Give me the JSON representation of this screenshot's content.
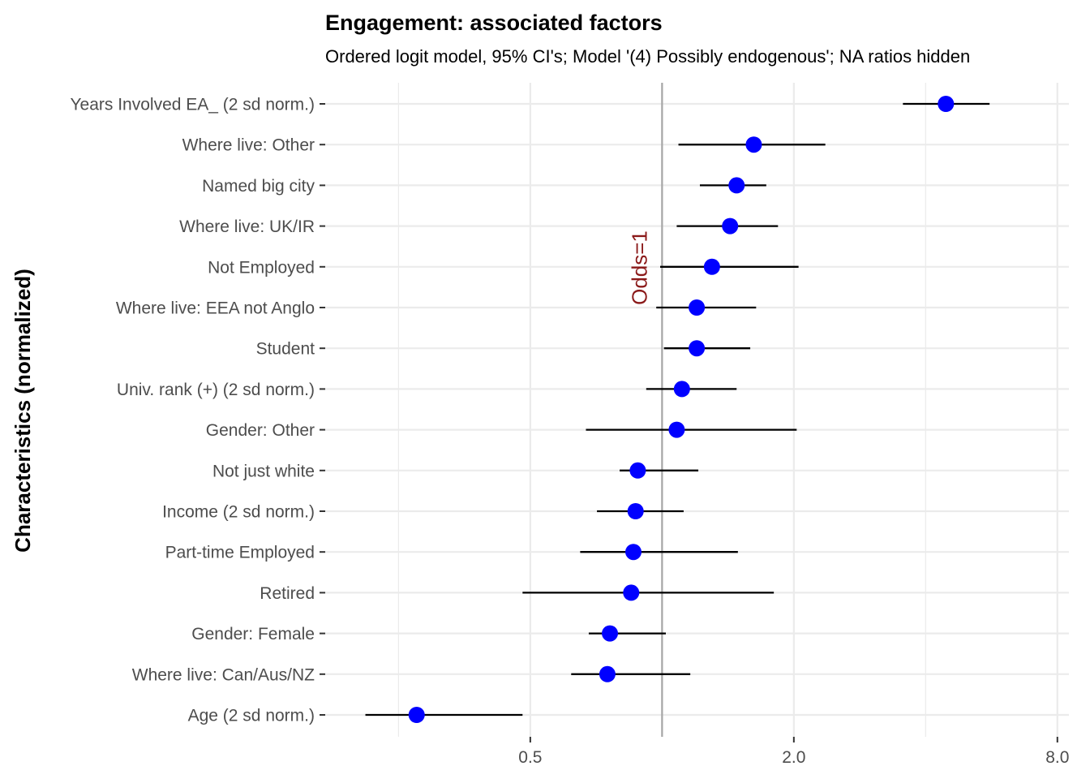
{
  "chart_data": {
    "type": "scatter",
    "title": "Engagement: associated factors",
    "subtitle": "Ordered logit model, 95% CI's; Model '(4) Possibly endogenous'; NA ratios hidden",
    "ylabel": "Characteristics (normalized)",
    "xlabel": "",
    "x_scale": "log2",
    "xlim": [
      0.17,
      8.5
    ],
    "x_ticks": [
      0.5,
      2.0,
      8.0
    ],
    "x_tick_labels": [
      "0.5",
      "2.0",
      "8.0"
    ],
    "grid": true,
    "reference_line": {
      "x": 1,
      "label": "Odds=1",
      "color": "#8b1a1a",
      "line_color": "#a6a6a6"
    },
    "point_color": "#0000ff",
    "interval_color": "#000000",
    "categories": [
      "Years Involved EA_ (2 sd norm.)",
      "Where live: Other",
      "Named big city",
      "Where live: UK/IR",
      "Not Employed",
      "Where live: EEA not Anglo",
      "Student",
      "Univ. rank (+) (2 sd norm.)",
      "Gender: Other",
      "Not just white",
      "Income (2 sd norm.)",
      "Part-time Employed",
      "Retired",
      "Gender: Female",
      "Where live: Can/Aus/NZ",
      "Age (2 sd norm.)"
    ],
    "estimates": [
      4.45,
      1.62,
      1.48,
      1.43,
      1.3,
      1.2,
      1.2,
      1.11,
      1.08,
      0.88,
      0.87,
      0.86,
      0.85,
      0.76,
      0.75,
      0.275
    ],
    "ci_low": [
      3.55,
      1.09,
      1.22,
      1.08,
      0.99,
      0.97,
      1.01,
      0.92,
      0.67,
      0.8,
      0.71,
      0.65,
      0.48,
      0.68,
      0.62,
      0.21
    ],
    "ci_high": [
      5.6,
      2.36,
      1.73,
      1.84,
      2.05,
      1.64,
      1.59,
      1.48,
      2.03,
      1.21,
      1.12,
      1.49,
      1.8,
      1.02,
      1.16,
      0.48
    ]
  }
}
